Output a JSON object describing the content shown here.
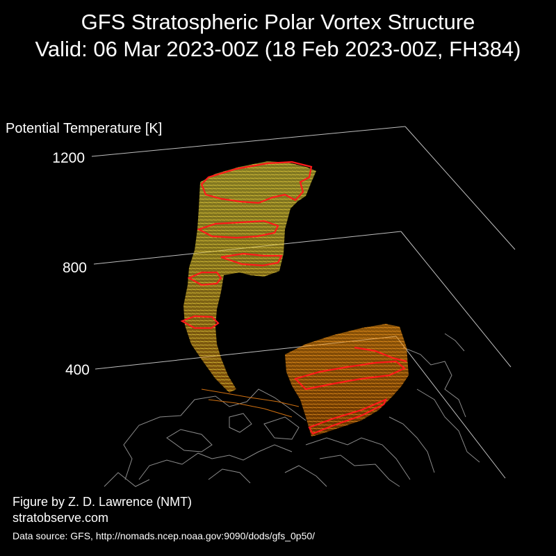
{
  "title": {
    "line1": "GFS Stratospheric Polar Vortex Structure",
    "line2": "Valid: 06 Mar 2023-00Z  (18 Feb 2023-00Z, FH384)"
  },
  "chart_data": {
    "type": "3d-isosurface",
    "zlabel": "Potential Temperature [K]",
    "z_ticks": [
      400,
      800,
      1200
    ],
    "colors": {
      "background": "#000000",
      "axes": "#bfbfbf",
      "coastline": "#8c8c8c",
      "vortex_low": "#ff8c00",
      "vortex_high": "#f0e040",
      "contour_highlight": "#ff1a1a"
    }
  },
  "credits": {
    "author": "Figure by Z. D. Lawrence (NMT)",
    "site": "stratobserve.com",
    "source": "Data source: GFS, http://nomads.ncep.noaa.gov:9090/dods/gfs_0p50/"
  }
}
